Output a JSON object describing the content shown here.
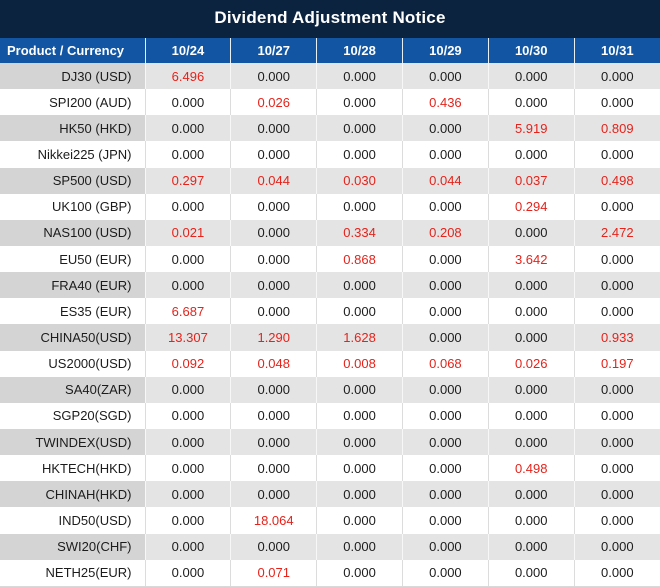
{
  "page": {
    "title": "Dividend Adjustment Notice"
  },
  "table": {
    "product_header": "Product / Currency",
    "date_columns": [
      "10/24",
      "10/27",
      "10/28",
      "10/29",
      "10/30",
      "10/31"
    ],
    "rows": [
      {
        "product": "DJ30 (USD)",
        "values": [
          "6.496",
          "0.000",
          "0.000",
          "0.000",
          "0.000",
          "0.000"
        ]
      },
      {
        "product": "SPI200 (AUD)",
        "values": [
          "0.000",
          "0.026",
          "0.000",
          "0.436",
          "0.000",
          "0.000"
        ]
      },
      {
        "product": "HK50 (HKD)",
        "values": [
          "0.000",
          "0.000",
          "0.000",
          "0.000",
          "5.919",
          "0.809"
        ]
      },
      {
        "product": "Nikkei225 (JPN)",
        "values": [
          "0.000",
          "0.000",
          "0.000",
          "0.000",
          "0.000",
          "0.000"
        ]
      },
      {
        "product": "SP500 (USD)",
        "values": [
          "0.297",
          "0.044",
          "0.030",
          "0.044",
          "0.037",
          "0.498"
        ]
      },
      {
        "product": "UK100 (GBP)",
        "values": [
          "0.000",
          "0.000",
          "0.000",
          "0.000",
          "0.294",
          "0.000"
        ]
      },
      {
        "product": "NAS100 (USD)",
        "values": [
          "0.021",
          "0.000",
          "0.334",
          "0.208",
          "0.000",
          "2.472"
        ]
      },
      {
        "product": "EU50 (EUR)",
        "values": [
          "0.000",
          "0.000",
          "0.868",
          "0.000",
          "3.642",
          "0.000"
        ]
      },
      {
        "product": "FRA40 (EUR)",
        "values": [
          "0.000",
          "0.000",
          "0.000",
          "0.000",
          "0.000",
          "0.000"
        ]
      },
      {
        "product": "ES35 (EUR)",
        "values": [
          "6.687",
          "0.000",
          "0.000",
          "0.000",
          "0.000",
          "0.000"
        ]
      },
      {
        "product": "CHINA50(USD)",
        "values": [
          "13.307",
          "1.290",
          "1.628",
          "0.000",
          "0.000",
          "0.933"
        ]
      },
      {
        "product": "US2000(USD)",
        "values": [
          "0.092",
          "0.048",
          "0.008",
          "0.068",
          "0.026",
          "0.197"
        ]
      },
      {
        "product": "SA40(ZAR)",
        "values": [
          "0.000",
          "0.000",
          "0.000",
          "0.000",
          "0.000",
          "0.000"
        ]
      },
      {
        "product": "SGP20(SGD)",
        "values": [
          "0.000",
          "0.000",
          "0.000",
          "0.000",
          "0.000",
          "0.000"
        ]
      },
      {
        "product": "TWINDEX(USD)",
        "values": [
          "0.000",
          "0.000",
          "0.000",
          "0.000",
          "0.000",
          "0.000"
        ]
      },
      {
        "product": "HKTECH(HKD)",
        "values": [
          "0.000",
          "0.000",
          "0.000",
          "0.000",
          "0.498",
          "0.000"
        ]
      },
      {
        "product": "CHINAH(HKD)",
        "values": [
          "0.000",
          "0.000",
          "0.000",
          "0.000",
          "0.000",
          "0.000"
        ]
      },
      {
        "product": "IND50(USD)",
        "values": [
          "0.000",
          "18.064",
          "0.000",
          "0.000",
          "0.000",
          "0.000"
        ]
      },
      {
        "product": "SWI20(CHF)",
        "values": [
          "0.000",
          "0.000",
          "0.000",
          "0.000",
          "0.000",
          "0.000"
        ]
      },
      {
        "product": "NETH25(EUR)",
        "values": [
          "0.000",
          "0.071",
          "0.000",
          "0.000",
          "0.000",
          "0.000"
        ]
      }
    ]
  },
  "colors": {
    "title_bar_bg": "#0c2340",
    "header_bg": "#1155a3",
    "nonzero_value_text": "#e5231b",
    "zero_value_text": "#1c1c1c",
    "alt_row_bg": "#e4e4e4",
    "alt_row_product_bg": "#d4d4d4"
  }
}
